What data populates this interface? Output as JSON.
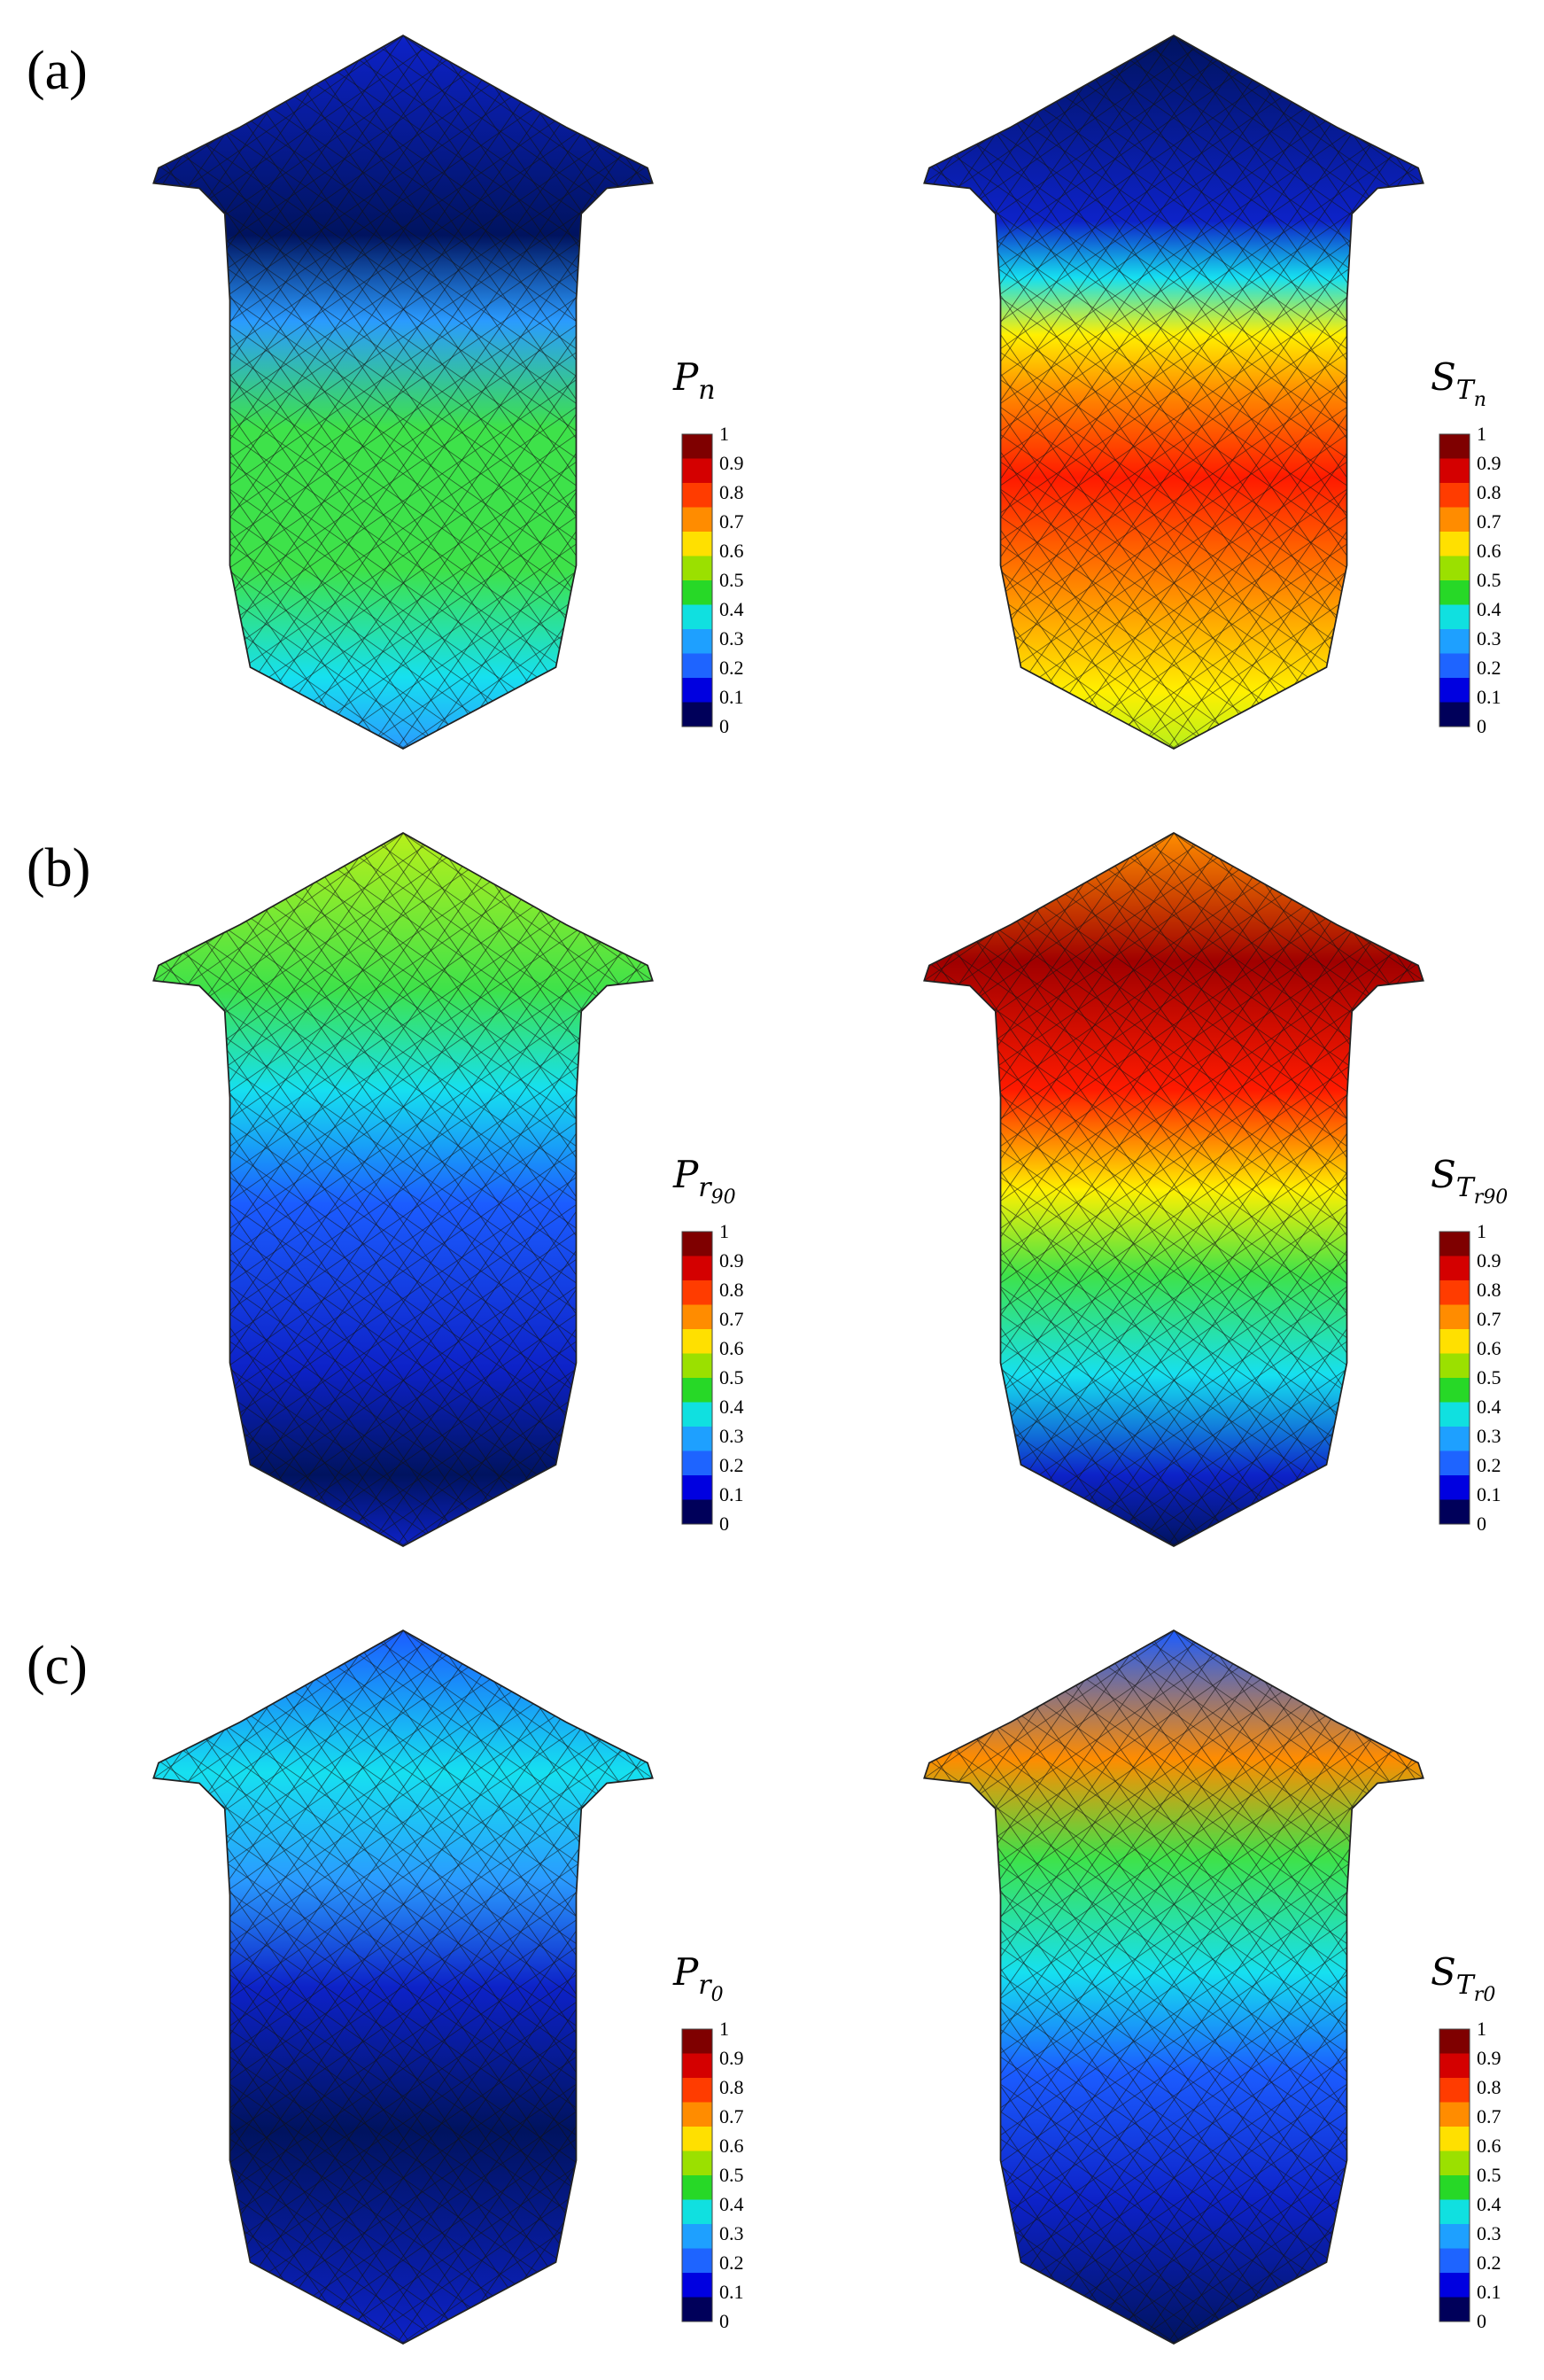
{
  "figure": {
    "panels": [
      {
        "label": "(a)",
        "maps": [
          {
            "var_main": "P",
            "var_sub": "n",
            "var_subsub": "",
            "palette_id": "pal_a_left"
          },
          {
            "var_main": "S",
            "var_sub": "T",
            "var_subsub": "n",
            "palette_id": "pal_a_right"
          }
        ]
      },
      {
        "label": "(b)",
        "maps": [
          {
            "var_main": "P",
            "var_sub": "r",
            "var_subsub": "90",
            "palette_id": "pal_b_left"
          },
          {
            "var_main": "S",
            "var_sub": "T",
            "var_subsub": "r90",
            "palette_id": "pal_b_right"
          }
        ]
      },
      {
        "label": "(c)",
        "maps": [
          {
            "var_main": "P",
            "var_sub": "r",
            "var_subsub": "0",
            "palette_id": "pal_c_left"
          },
          {
            "var_main": "S",
            "var_sub": "T",
            "var_subsub": "r0",
            "palette_id": "pal_c_right"
          }
        ]
      }
    ],
    "colorbar": {
      "ticks": [
        "1",
        "0.9",
        "0.8",
        "0.7",
        "0.6",
        "0.5",
        "0.4",
        "0.3",
        "0.2",
        "0.1",
        "0"
      ],
      "colors": [
        "#7f0000",
        "#d40000",
        "#ff3c00",
        "#ff8c00",
        "#ffe000",
        "#9be000",
        "#27d827",
        "#10e0e0",
        "#1ea0ff",
        "#1e64ff",
        "#0000e0",
        "#00005a"
      ]
    },
    "field_colors": {
      "dark_blue": "#00135f",
      "blue": "#0d22c8",
      "mid_blue": "#1b5cff",
      "light_blue": "#2a9bff",
      "cyan": "#16e0f0",
      "green": "#3ee24a",
      "yellow_green": "#b7f01a",
      "yellow": "#fff000",
      "orange": "#ff8c00",
      "red": "#ff1a00",
      "dark_red": "#a00000"
    }
  }
}
